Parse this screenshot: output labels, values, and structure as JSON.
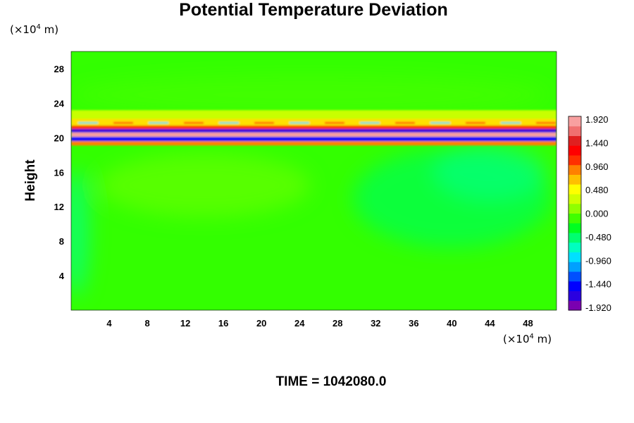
{
  "chart_data": {
    "type": "heatmap",
    "title": "Potential Temperature Deviation",
    "ylabel": "Height",
    "x_unit": {
      "prefix": "(×10",
      "exp": "4",
      "suffix": " m)"
    },
    "y_unit": {
      "prefix": "(×10",
      "exp": "4",
      "suffix": " m)"
    },
    "xlim": [
      0,
      51
    ],
    "ylim": [
      0,
      30
    ],
    "x_ticks": [
      "4",
      "8",
      "12",
      "16",
      "20",
      "24",
      "28",
      "32",
      "36",
      "40",
      "44",
      "48"
    ],
    "y_ticks": [
      "4",
      "8",
      "12",
      "16",
      "20",
      "24",
      "28"
    ],
    "colorbar": {
      "range": [
        -1.92,
        1.92
      ],
      "labels": [
        "1.920",
        "1.440",
        "0.960",
        "0.480",
        "0.000",
        "-0.480",
        "-0.960",
        "-1.440",
        "-1.920"
      ],
      "colors": [
        "#7a00b0",
        "#2a00e0",
        "#0000ff",
        "#0050ff",
        "#00a0ff",
        "#00e0ff",
        "#00ffc0",
        "#00ff70",
        "#00ff20",
        "#40ff00",
        "#90ff00",
        "#d0ff00",
        "#ffff00",
        "#ffc000",
        "#ff8000",
        "#ff3000",
        "#ff0000",
        "#e02020",
        "#f07070",
        "#f8a0a0"
      ]
    },
    "field_summary": {
      "background_value": 0.0,
      "max_value": 1.92,
      "min_value": -1.92,
      "strong_band_y": [
        19.6,
        21.6
      ],
      "weak_negative_regions": "right half below band, left edge"
    },
    "footer": "TIME = 1042080.0"
  }
}
